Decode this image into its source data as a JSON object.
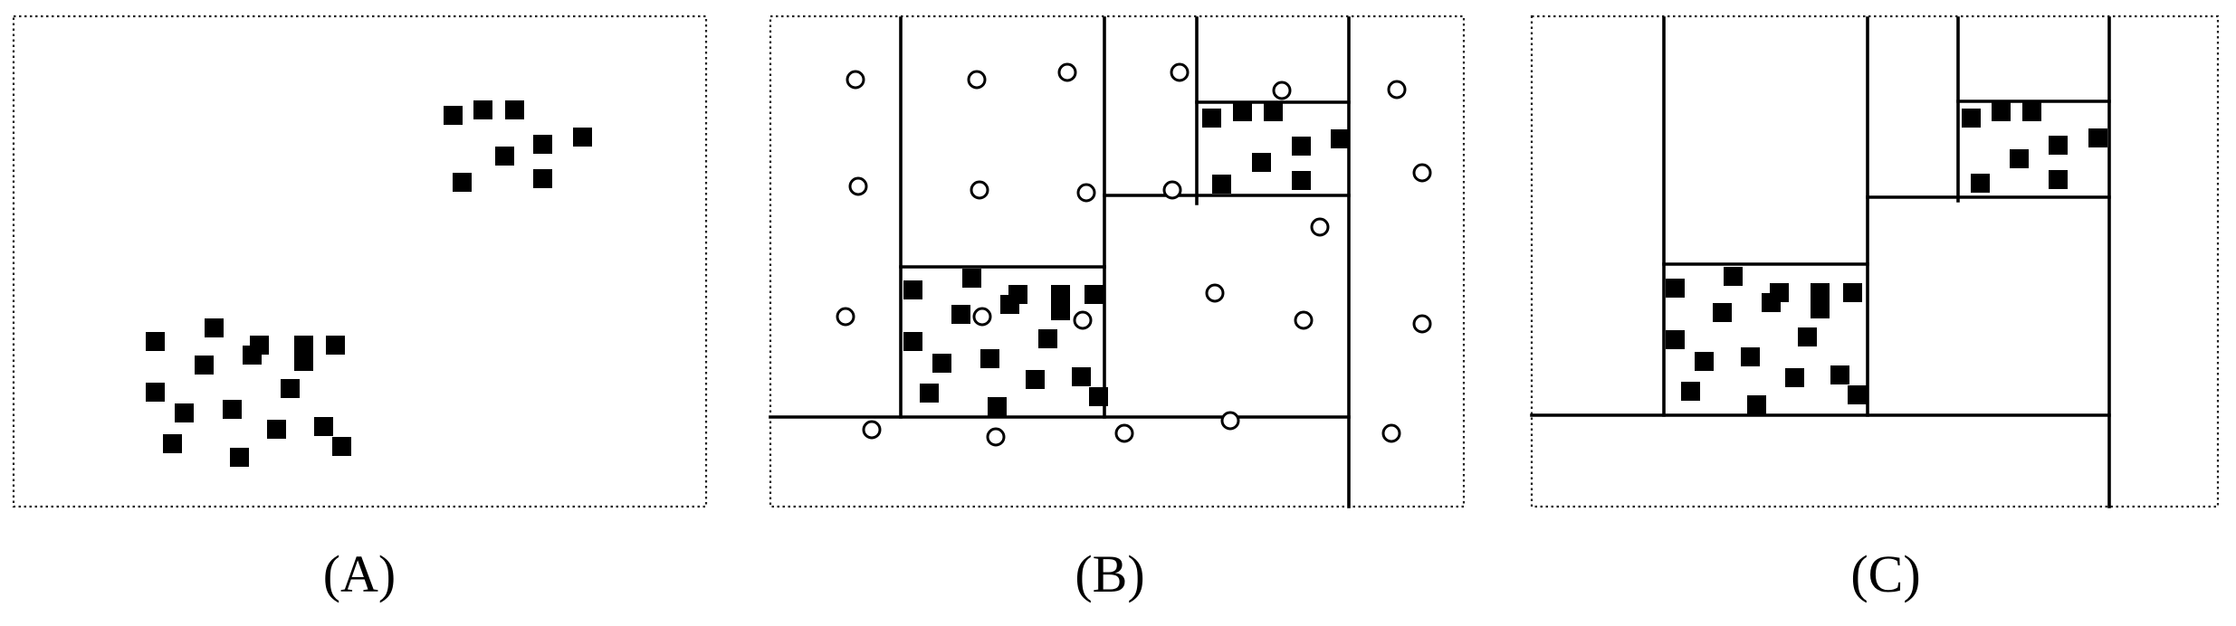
{
  "panels": [
    {
      "id": "A",
      "caption": "(A)"
    },
    {
      "id": "B",
      "caption": "(B)"
    },
    {
      "id": "C",
      "caption": "(C)"
    }
  ],
  "legend_shapes": {
    "filled_square": "filled-square",
    "open_circle": "open-circle"
  },
  "colors": {
    "ink": "#000000",
    "background": "#ffffff"
  }
}
